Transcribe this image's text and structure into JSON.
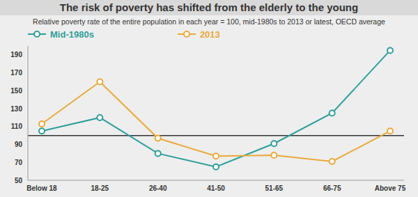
{
  "chart_data": {
    "type": "line",
    "title": "The risk of poverty has shifted from the elderly to the young",
    "subtitle": "Relative poverty rate of the entire population in each year = 100, mid-1980s to 2013 or latest, OECD average",
    "categories": [
      "Below 18",
      "18-25",
      "26-40",
      "41-50",
      "51-65",
      "66-75",
      "Above 75"
    ],
    "series": [
      {
        "name": "Mid-1980s",
        "color": "#2e9e9a",
        "marker": "circle",
        "values": [
          105,
          120,
          80,
          65,
          91,
          125,
          195
        ]
      },
      {
        "name": "2013",
        "color": "#e9a93a",
        "marker": "circle",
        "values": [
          113,
          160,
          97,
          77,
          78,
          71,
          105
        ]
      }
    ],
    "ylim": [
      50,
      200
    ],
    "yticks": [
      50,
      70,
      90,
      110,
      130,
      150,
      170,
      190
    ],
    "baseline": 100,
    "grid": false,
    "legend": "top"
  }
}
